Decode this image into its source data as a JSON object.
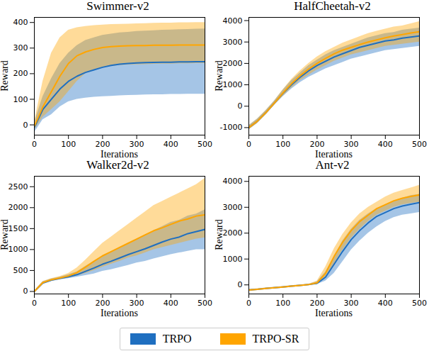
{
  "chart_data": [
    {
      "type": "line",
      "title": "Swimmer-v2",
      "x_label": "Iterations",
      "y_label": "Reward",
      "x": [
        0,
        25,
        50,
        75,
        100,
        125,
        150,
        175,
        200,
        225,
        250,
        275,
        300,
        325,
        350,
        375,
        400,
        425,
        450,
        475,
        500
      ],
      "xlim": [
        0,
        500
      ],
      "xticks": [
        0,
        100,
        200,
        300,
        400,
        500
      ],
      "ylim": [
        -40,
        420
      ],
      "yticks": [
        0,
        100,
        200,
        300,
        400
      ],
      "legend": "bottom",
      "series": [
        {
          "name": "TRPO",
          "color": "#1f6fc0",
          "values": [
            -10,
            60,
            100,
            140,
            170,
            190,
            205,
            215,
            225,
            232,
            237,
            240,
            242,
            243,
            244,
            245,
            245,
            246,
            246,
            247,
            247
          ],
          "lower": [
            -30,
            20,
            40,
            70,
            90,
            100,
            105,
            108,
            110,
            112,
            114,
            115,
            116,
            117,
            118,
            118,
            119,
            119,
            120,
            120,
            120
          ],
          "upper": [
            10,
            110,
            180,
            240,
            280,
            310,
            330,
            340,
            350,
            355,
            360,
            362,
            365,
            367,
            368,
            370,
            371,
            372,
            373,
            374,
            375
          ]
        },
        {
          "name": "TRPO-SR",
          "color": "#ffa500",
          "values": [
            -5,
            70,
            130,
            190,
            240,
            270,
            285,
            295,
            302,
            306,
            308,
            309,
            310,
            310,
            311,
            311,
            311,
            312,
            312,
            312,
            312
          ],
          "lower": [
            -20,
            30,
            60,
            90,
            130,
            170,
            200,
            215,
            225,
            229,
            232,
            234,
            235,
            236,
            237,
            238,
            238,
            239,
            239,
            240,
            240
          ],
          "upper": [
            10,
            170,
            280,
            340,
            370,
            380,
            385,
            388,
            390,
            392,
            393,
            394,
            395,
            396,
            397,
            398,
            398,
            399,
            399,
            400,
            400
          ]
        }
      ]
    },
    {
      "type": "line",
      "title": "HalfCheetah-v2",
      "x_label": "Iterations",
      "y_label": "Reward",
      "x": [
        0,
        25,
        50,
        75,
        100,
        125,
        150,
        175,
        200,
        225,
        250,
        275,
        300,
        325,
        350,
        375,
        400,
        425,
        450,
        475,
        500
      ],
      "xlim": [
        0,
        500
      ],
      "xticks": [
        0,
        100,
        200,
        300,
        400,
        500
      ],
      "ylim": [
        -1350,
        4150
      ],
      "yticks": [
        -1000,
        0,
        1000,
        2000,
        3000,
        4000
      ],
      "series": [
        {
          "name": "TRPO",
          "color": "#1f6fc0",
          "values": [
            -1000,
            -700,
            -300,
            150,
            600,
            1000,
            1350,
            1650,
            1900,
            2100,
            2300,
            2450,
            2600,
            2750,
            2850,
            2950,
            3050,
            3100,
            3180,
            3230,
            3280
          ],
          "lower": [
            -1100,
            -800,
            -400,
            50,
            450,
            800,
            1100,
            1350,
            1550,
            1750,
            1900,
            2050,
            2200,
            2300,
            2400,
            2500,
            2600,
            2650,
            2700,
            2750,
            2800
          ],
          "upper": [
            -900,
            -600,
            -200,
            250,
            750,
            1200,
            1550,
            1900,
            2150,
            2400,
            2600,
            2750,
            2900,
            3050,
            3200,
            3300,
            3400,
            3450,
            3550,
            3600,
            3650
          ]
        },
        {
          "name": "TRPO-SR",
          "color": "#ffa500",
          "values": [
            -1000,
            -700,
            -300,
            150,
            620,
            1050,
            1420,
            1730,
            2000,
            2230,
            2450,
            2620,
            2750,
            2880,
            3000,
            3100,
            3200,
            3280,
            3350,
            3420,
            3480
          ],
          "lower": [
            -1100,
            -800,
            -400,
            50,
            470,
            850,
            1200,
            1450,
            1700,
            1900,
            2100,
            2250,
            2400,
            2500,
            2600,
            2700,
            2800,
            2850,
            2900,
            2950,
            3000
          ],
          "upper": [
            -900,
            -600,
            -200,
            250,
            770,
            1250,
            1650,
            2000,
            2300,
            2550,
            2750,
            2950,
            3100,
            3250,
            3400,
            3500,
            3600,
            3700,
            3750,
            3850,
            3950
          ]
        }
      ]
    },
    {
      "type": "line",
      "title": "Walker2d-v2",
      "x_label": "Iterations",
      "y_label": "Reward",
      "x": [
        0,
        25,
        50,
        75,
        100,
        125,
        150,
        175,
        200,
        225,
        250,
        275,
        300,
        325,
        350,
        375,
        400,
        425,
        450,
        475,
        500
      ],
      "xlim": [
        0,
        500
      ],
      "xticks": [
        0,
        100,
        200,
        300,
        400,
        500
      ],
      "ylim": [
        -60,
        2750
      ],
      "yticks": [
        0,
        500,
        1000,
        1500,
        2000,
        2500
      ],
      "series": [
        {
          "name": "TRPO",
          "color": "#1f6fc0",
          "values": [
            0,
            200,
            270,
            310,
            350,
            400,
            480,
            560,
            650,
            720,
            800,
            880,
            950,
            1020,
            1100,
            1180,
            1250,
            1300,
            1380,
            1430,
            1480
          ],
          "lower": [
            -10,
            170,
            240,
            280,
            310,
            340,
            380,
            420,
            480,
            520,
            570,
            620,
            680,
            720,
            780,
            830,
            880,
            920,
            960,
            1000,
            1000
          ],
          "upper": [
            10,
            230,
            300,
            340,
            400,
            470,
            600,
            720,
            850,
            950,
            1050,
            1150,
            1250,
            1350,
            1450,
            1550,
            1650,
            1700,
            1800,
            1850,
            1950
          ]
        },
        {
          "name": "TRPO-SR",
          "color": "#ffa500",
          "values": [
            0,
            210,
            280,
            320,
            370,
            450,
            580,
            720,
            850,
            950,
            1050,
            1150,
            1250,
            1350,
            1450,
            1520,
            1600,
            1680,
            1730,
            1800,
            1830
          ],
          "lower": [
            -10,
            180,
            250,
            290,
            320,
            370,
            430,
            500,
            580,
            650,
            720,
            800,
            850,
            920,
            1000,
            1050,
            1100,
            1150,
            1200,
            1250,
            1280
          ],
          "upper": [
            10,
            240,
            310,
            360,
            430,
            560,
            750,
            950,
            1150,
            1300,
            1450,
            1600,
            1750,
            1900,
            2050,
            2150,
            2250,
            2350,
            2450,
            2550,
            2700
          ]
        }
      ]
    },
    {
      "type": "line",
      "title": "Ant-v2",
      "x_label": "Iterations",
      "y_label": "Reward",
      "x": [
        0,
        25,
        50,
        75,
        100,
        125,
        150,
        175,
        200,
        225,
        250,
        275,
        300,
        325,
        350,
        375,
        400,
        425,
        450,
        475,
        500
      ],
      "xlim": [
        0,
        500
      ],
      "xticks": [
        0,
        100,
        200,
        300,
        400,
        500
      ],
      "ylim": [
        -350,
        4200
      ],
      "yticks": [
        0,
        1000,
        2000,
        3000,
        4000
      ],
      "series": [
        {
          "name": "TRPO",
          "color": "#1f6fc0",
          "values": [
            -200,
            -170,
            -140,
            -110,
            -80,
            -50,
            -20,
            10,
            60,
            300,
            800,
            1300,
            1750,
            2100,
            2400,
            2650,
            2800,
            2950,
            3050,
            3120,
            3180
          ],
          "lower": [
            -230,
            -190,
            -160,
            -130,
            -100,
            -70,
            -40,
            -10,
            20,
            150,
            450,
            900,
            1350,
            1700,
            2000,
            2250,
            2450,
            2600,
            2700,
            2750,
            2800
          ],
          "upper": [
            -170,
            -150,
            -120,
            -90,
            -60,
            -30,
            0,
            30,
            120,
            500,
            1100,
            1700,
            2150,
            2500,
            2750,
            2950,
            3100,
            3250,
            3350,
            3450,
            3500
          ]
        },
        {
          "name": "TRPO-SR",
          "color": "#ffa500",
          "values": [
            -200,
            -170,
            -140,
            -110,
            -80,
            -50,
            -20,
            10,
            80,
            450,
            1100,
            1650,
            2100,
            2450,
            2700,
            2950,
            3100,
            3250,
            3350,
            3420,
            3480
          ],
          "lower": [
            -230,
            -190,
            -160,
            -130,
            -100,
            -70,
            -40,
            -10,
            30,
            250,
            800,
            1350,
            1800,
            2150,
            2450,
            2700,
            2850,
            3000,
            3100,
            3150,
            3200
          ],
          "upper": [
            -170,
            -150,
            -120,
            -90,
            -60,
            -30,
            0,
            30,
            150,
            700,
            1400,
            1950,
            2400,
            2750,
            3000,
            3200,
            3400,
            3550,
            3650,
            3750,
            3850
          ]
        }
      ]
    }
  ]
}
